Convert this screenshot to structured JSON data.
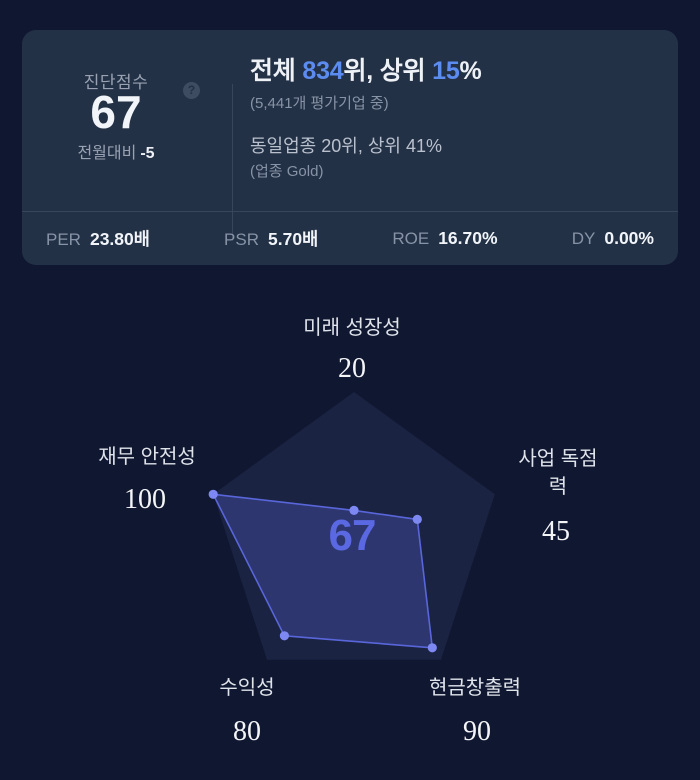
{
  "score_card": {
    "score_label": "진단점수",
    "help_icon_glyph": "?",
    "score": "67",
    "mom_label": "전월대비",
    "mom_value": "-5",
    "rank_line": {
      "prefix": "전체 ",
      "rank": "834",
      "mid": "위, 상위 ",
      "percent": "15",
      "suffix": "%"
    },
    "rank_sub": "(5,441개 평가기업 중)",
    "industry_line": "동일업종 20위, 상위 41%",
    "industry_sub": "(업종 Gold)",
    "metrics": [
      {
        "label": "PER",
        "value": "23.80배"
      },
      {
        "label": "PSR",
        "value": "5.70배"
      },
      {
        "label": "ROE",
        "value": "16.70%"
      },
      {
        "label": "DY",
        "value": "0.00%"
      }
    ]
  },
  "chart_data": {
    "type": "radar",
    "title": "",
    "max": 100,
    "center_score": 67,
    "axes": [
      {
        "label": "미래 성장성",
        "value": 20
      },
      {
        "label": "사업 독점력",
        "value": 45
      },
      {
        "label": "현금창출력",
        "value": 90
      },
      {
        "label": "수익성",
        "value": 80
      },
      {
        "label": "재무 안전성",
        "value": 100
      }
    ],
    "legend": "none",
    "grid": "pentagon-background-only"
  },
  "colors": {
    "page_bg": "#101731",
    "card_bg": "#233146",
    "divider": "#37465b",
    "accent_blue": "#5c8cf0",
    "score_purple": "#5a68e2",
    "pentagon_fill": "#1b2342",
    "data_fill": "rgba(88,99,216,0.30)",
    "data_stroke": "#5966da",
    "data_dot": "#7d88f2",
    "muted_text": "#8793a6",
    "axis_text": "#dfe3ea"
  }
}
